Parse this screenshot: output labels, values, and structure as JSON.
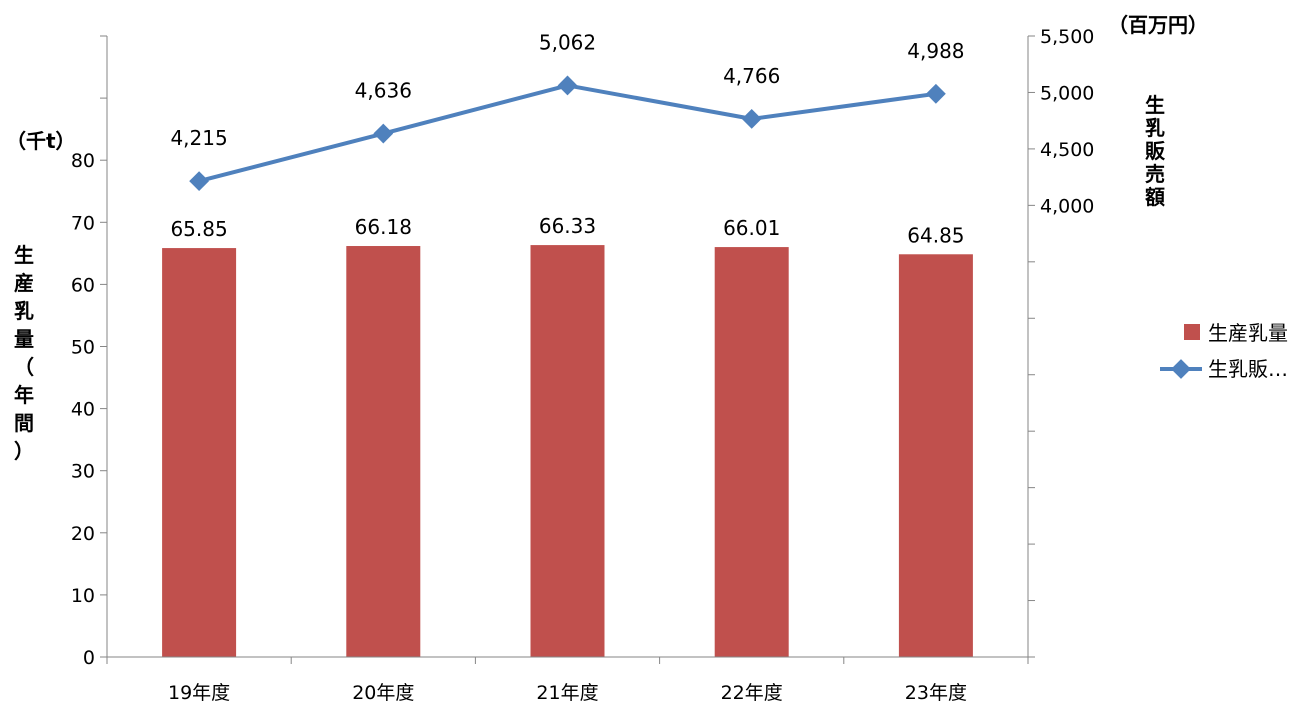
{
  "chart_data": {
    "type": "bar",
    "categories": [
      "19年度",
      "20年度",
      "21年度",
      "22年度",
      "23年度"
    ],
    "series": [
      {
        "name": "生産乳量",
        "type": "bar",
        "axis": "left",
        "color": "#c0504d",
        "values": [
          65.85,
          66.18,
          66.33,
          66.01,
          64.85
        ],
        "labels": [
          "65.85",
          "66.18",
          "66.33",
          "66.01",
          "64.85"
        ]
      },
      {
        "name": "生乳販…",
        "type": "line",
        "axis": "right",
        "color": "#4f81bd",
        "values": [
          4215,
          4636,
          5062,
          4766,
          4988
        ],
        "labels": [
          "4,215",
          "4,636",
          "5,062",
          "4,766",
          "4,988"
        ]
      }
    ],
    "left_axis": {
      "unit": "（千t）",
      "label": "生産乳量（年間）",
      "label_chars": [
        "生",
        "産",
        "乳",
        "量",
        "（",
        "年",
        "間",
        "）"
      ],
      "min": 0,
      "max": 100,
      "ticks": [
        0,
        10,
        20,
        30,
        40,
        50,
        60,
        70,
        80
      ],
      "tick_labels": [
        "0",
        "10",
        "20",
        "30",
        "40",
        "50",
        "60",
        "70",
        "80"
      ]
    },
    "right_axis": {
      "unit": "（百万円）",
      "label": "生乳販売額",
      "label_chars": [
        "生",
        "乳",
        "販",
        "売",
        "額"
      ],
      "min": 0,
      "max": 5500,
      "ticks": [
        4000,
        4500,
        5000,
        5500
      ],
      "tick_labels": [
        "4,000",
        "4,500",
        "5,000",
        "5,500"
      ]
    },
    "legend_position": "right",
    "grid": false
  }
}
